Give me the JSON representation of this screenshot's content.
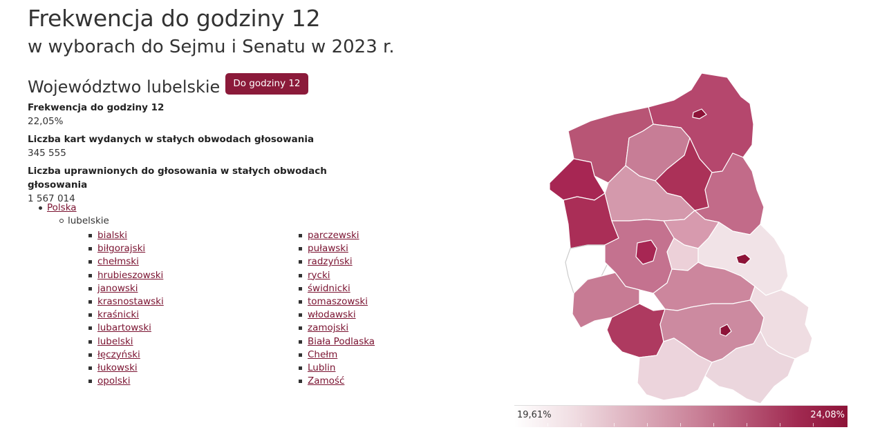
{
  "title": "Frekwencja do godziny 12",
  "subtitle": "w wyborach do Sejmu i Senatu w 2023 r.",
  "region": {
    "name": "Województwo lubelskie",
    "hour_button": "Do godziny 12"
  },
  "stats": [
    {
      "label": "Frekwencja do godziny 12",
      "value": "22,05%"
    },
    {
      "label": "Liczba kart wydanych w stałych obwodach głosowania",
      "value": "345 555"
    },
    {
      "label": "Liczba uprawnionych do głosowania w stałych obwodach głosowania",
      "value": "1 567 014"
    }
  ],
  "breadcrumb": {
    "country": "Polska",
    "voivodeship": "lubelskie"
  },
  "counties_col1": [
    "bialski",
    "biłgorajski",
    "chełmski",
    "hrubieszowski",
    "janowski",
    "krasnostawski",
    "kraśnicki",
    "lubartowski",
    "lubelski",
    "łęczyński",
    "łukowski",
    "opolski"
  ],
  "counties_col2": [
    "parczewski",
    "puławski",
    "radzyński",
    "rycki",
    "świdnicki",
    "tomaszowski",
    "włodawski",
    "zamojski",
    "Biała Podlaska",
    "Chełm",
    "Lublin",
    "Zamość"
  ],
  "legend": {
    "min": "19,61%",
    "max": "24,08%",
    "color_low": "#ffffff",
    "color_high": "#8d1338"
  }
}
